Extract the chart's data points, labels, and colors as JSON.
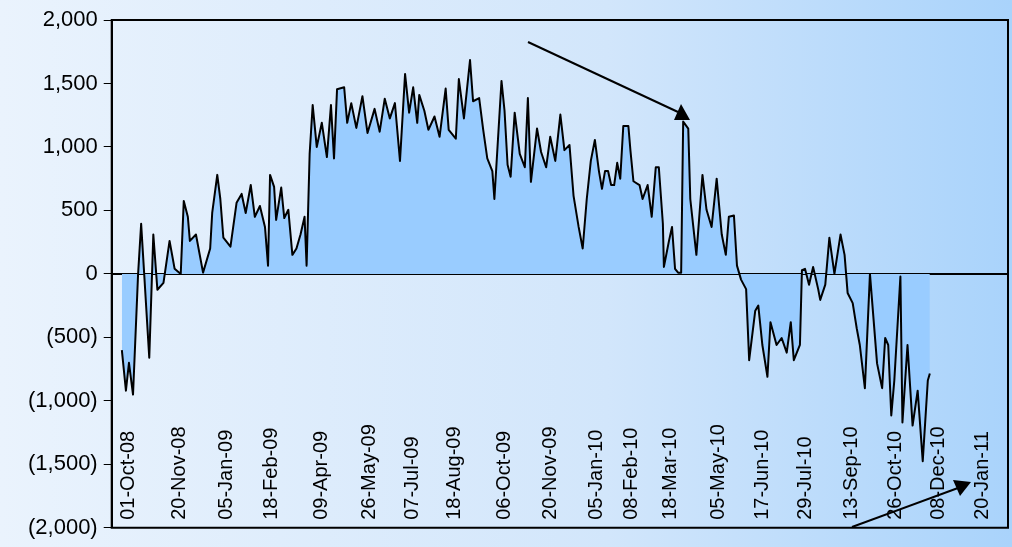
{
  "chart_data": {
    "type": "area",
    "x": [
      "2008-09-24",
      "2008-09-28",
      "2008-10-01",
      "2008-10-05",
      "2008-10-10",
      "2008-10-13",
      "2008-10-16",
      "2008-10-21",
      "2008-10-25",
      "2008-10-29",
      "2008-11-04",
      "2008-11-10",
      "2008-11-15",
      "2008-11-21",
      "2008-11-24",
      "2008-11-28",
      "2008-11-30",
      "2008-12-06",
      "2008-12-13",
      "2008-12-20",
      "2008-12-22",
      "2008-12-27",
      "2008-12-30",
      "2009-01-02",
      "2009-01-09",
      "2009-01-15",
      "2009-01-20",
      "2009-01-24",
      "2009-01-29",
      "2009-02-02",
      "2009-02-07",
      "2009-02-12",
      "2009-02-15",
      "2009-02-17",
      "2009-02-21",
      "2009-02-23",
      "2009-02-28",
      "2009-03-03",
      "2009-03-07",
      "2009-03-11",
      "2009-03-15",
      "2009-03-19",
      "2009-03-23",
      "2009-03-25",
      "2009-03-28",
      "2009-03-31",
      "2009-04-04",
      "2009-04-09",
      "2009-04-14",
      "2009-04-18",
      "2009-04-21",
      "2009-04-24",
      "2009-05-01",
      "2009-05-04",
      "2009-05-08",
      "2009-05-13",
      "2009-05-19",
      "2009-05-24",
      "2009-05-31",
      "2009-06-05",
      "2009-06-10",
      "2009-06-15",
      "2009-06-20",
      "2009-06-25",
      "2009-06-30",
      "2009-07-04",
      "2009-07-08",
      "2009-07-12",
      "2009-07-14",
      "2009-07-19",
      "2009-07-23",
      "2009-07-29",
      "2009-08-03",
      "2009-08-09",
      "2009-08-12",
      "2009-08-19",
      "2009-08-22",
      "2009-08-27",
      "2009-09-02",
      "2009-09-05",
      "2009-09-11",
      "2009-09-15",
      "2009-09-19",
      "2009-09-24",
      "2009-09-26",
      "2009-10-03",
      "2009-10-06",
      "2009-10-09",
      "2009-10-12",
      "2009-10-16",
      "2009-10-21",
      "2009-10-26",
      "2009-10-29",
      "2009-11-01",
      "2009-11-07",
      "2009-11-11",
      "2009-11-16",
      "2009-11-20",
      "2009-11-25",
      "2009-11-30",
      "2009-12-04",
      "2009-12-09",
      "2009-12-13",
      "2009-12-18",
      "2009-12-22",
      "2009-12-26",
      "2009-12-30",
      "2010-01-03",
      "2010-01-07",
      "2010-01-10",
      "2010-01-13",
      "2010-01-16",
      "2010-01-19",
      "2010-01-22",
      "2010-01-25",
      "2010-01-28",
      "2010-01-31",
      "2010-02-05",
      "2010-02-07",
      "2010-02-10",
      "2010-02-16",
      "2010-02-19",
      "2010-02-24",
      "2010-02-28",
      "2010-03-04",
      "2010-03-07",
      "2010-03-11",
      "2010-03-12",
      "2010-03-17",
      "2010-03-20",
      "2010-03-23",
      "2010-03-26",
      "2010-03-29",
      "2010-03-31",
      "2010-04-05",
      "2010-04-07",
      "2010-04-13",
      "2010-04-19",
      "2010-04-23",
      "2010-04-28",
      "2010-05-03",
      "2010-05-08",
      "2010-05-12",
      "2010-05-15",
      "2010-05-20",
      "2010-05-23",
      "2010-05-27",
      "2010-06-01",
      "2010-06-04",
      "2010-06-10",
      "2010-06-13",
      "2010-06-17",
      "2010-06-22",
      "2010-06-25",
      "2010-07-01",
      "2010-07-06",
      "2010-07-11",
      "2010-07-15",
      "2010-07-18",
      "2010-07-24",
      "2010-07-26",
      "2010-07-29",
      "2010-08-02",
      "2010-08-06",
      "2010-08-11",
      "2010-08-13",
      "2010-08-18",
      "2010-08-22",
      "2010-08-27",
      "2010-09-02",
      "2010-09-06",
      "2010-09-09",
      "2010-09-14",
      "2010-09-18",
      "2010-09-21",
      "2010-09-26",
      "2010-10-01",
      "2010-10-08",
      "2010-10-13",
      "2010-10-16",
      "2010-10-19",
      "2010-10-22",
      "2010-10-25",
      "2010-10-31",
      "2010-11-02",
      "2010-11-07",
      "2010-11-12",
      "2010-11-17",
      "2010-11-22",
      "2010-11-27",
      "2010-11-29"
    ],
    "values": [
      -600,
      -920,
      -700,
      -950,
      0,
      395,
      0,
      -660,
      310,
      -125,
      -70,
      260,
      40,
      0,
      575,
      450,
      260,
      310,
      10,
      200,
      480,
      780,
      590,
      285,
      215,
      560,
      630,
      480,
      700,
      450,
      535,
      370,
      65,
      780,
      685,
      425,
      680,
      440,
      505,
      150,
      200,
      310,
      450,
      65,
      945,
      1330,
      1000,
      1190,
      920,
      1330,
      910,
      1455,
      1470,
      1190,
      1345,
      1150,
      1400,
      1110,
      1300,
      1120,
      1380,
      1225,
      1345,
      890,
      1575,
      1270,
      1470,
      1190,
      1410,
      1285,
      1135,
      1240,
      1080,
      1460,
      1135,
      1065,
      1535,
      1225,
      1685,
      1360,
      1385,
      1135,
      910,
      810,
      590,
      1520,
      1285,
      860,
      765,
      1270,
      945,
      840,
      1385,
      725,
      1145,
      960,
      840,
      1080,
      890,
      1255,
      975,
      1015,
      615,
      370,
      200,
      590,
      890,
      1055,
      810,
      670,
      810,
      810,
      700,
      700,
      875,
      750,
      1165,
      1165,
      975,
      730,
      700,
      590,
      700,
      450,
      840,
      840,
      395,
      55,
      260,
      370,
      40,
      10,
      10,
      1200,
      1145,
      590,
      150,
      780,
      505,
      370,
      750,
      310,
      150,
      450,
      460,
      65,
      -45,
      -120,
      -680,
      -290,
      -250,
      -560,
      -810,
      -380,
      -560,
      -505,
      -620,
      -380,
      -680,
      -560,
      30,
      40,
      -85,
      55,
      -120,
      -205,
      -85,
      285,
      0,
      310,
      150,
      -150,
      -230,
      -430,
      -560,
      -900,
      0,
      -705,
      -900,
      -505,
      -560,
      -1115,
      -840,
      -20,
      -1170,
      -560,
      -1195,
      -920,
      -1475,
      -840,
      -785
    ],
    "color": "#99ccff",
    "xlim": [
      "2008-09-14",
      "2011-02-14"
    ],
    "xticks": [
      {
        "value": "2008-10-01",
        "label": "01-Oct-08"
      },
      {
        "value": "2008-11-20",
        "label": "20-Nov-08"
      },
      {
        "value": "2009-01-05",
        "label": "05-Jan-09"
      },
      {
        "value": "2009-02-18",
        "label": "18-Feb-09"
      },
      {
        "value": "2009-04-09",
        "label": "09-Apr-09"
      },
      {
        "value": "2009-05-26",
        "label": "26-May-09"
      },
      {
        "value": "2009-07-07",
        "label": "07-Jul-09"
      },
      {
        "value": "2009-08-18",
        "label": "18-Aug-09"
      },
      {
        "value": "2009-10-06",
        "label": "06-Oct-09"
      },
      {
        "value": "2009-11-20",
        "label": "20-Nov-09"
      },
      {
        "value": "2010-01-05",
        "label": "05-Jan-10"
      },
      {
        "value": "2010-02-08",
        "label": "08-Feb-10"
      },
      {
        "value": "2010-03-18",
        "label": "18-Mar-10"
      },
      {
        "value": "2010-05-05",
        "label": "05-May-10"
      },
      {
        "value": "2010-06-17",
        "label": "17-Jun-10"
      },
      {
        "value": "2010-07-29",
        "label": "29-Jul-10"
      },
      {
        "value": "2010-09-13",
        "label": "13-Sep-10"
      },
      {
        "value": "2010-10-26",
        "label": "26-Oct-10"
      },
      {
        "value": "2010-12-08",
        "label": "08-Dec-10"
      },
      {
        "value": "2011-01-20",
        "label": "20-Jan-11"
      }
    ],
    "ylim": [
      -2000,
      2000
    ],
    "yticks": [
      {
        "value": -2000,
        "label": "(2,000)"
      },
      {
        "value": -1500,
        "label": "(1,500)"
      },
      {
        "value": -1000,
        "label": "(1,000)"
      },
      {
        "value": -500,
        "label": "(500)"
      },
      0,
      {
        "value": 500,
        "label": "500"
      },
      {
        "value": 1000,
        "label": "1,000"
      },
      {
        "value": 1500,
        "label": "1,500"
      },
      {
        "value": 2000,
        "label": "2,000"
      }
    ]
  }
}
